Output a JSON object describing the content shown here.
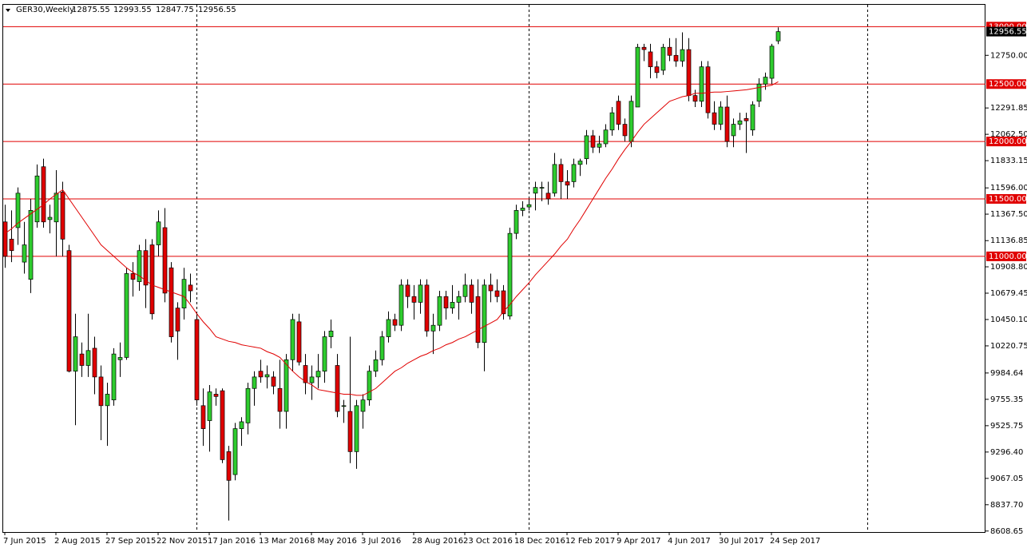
{
  "chart_data": {
    "type": "candlestick",
    "symbol": "GER30,Weekly",
    "up_color": "#2ecc2e",
    "down_color": "#e00000",
    "ma_color": "#e00000",
    "level_color": "#e00000",
    "categories": [
      "7 Jun 2015",
      null,
      null,
      null,
      null,
      null,
      null,
      null,
      "2 Aug 2015",
      null,
      null,
      null,
      null,
      null,
      null,
      null,
      "27 Sep 2015",
      null,
      null,
      null,
      null,
      null,
      null,
      null,
      "22 Nov 2015",
      null,
      null,
      null,
      null,
      null,
      null,
      null,
      "17 Jan 2016",
      null,
      null,
      null,
      null,
      null,
      null,
      null,
      "13 Mar 2016",
      null,
      null,
      null,
      null,
      null,
      null,
      null,
      "8 May 2016",
      null,
      null,
      null,
      null,
      null,
      null,
      null,
      "3 Jul 2016",
      null,
      null,
      null,
      null,
      null,
      null,
      null,
      "28 Aug 2016",
      null,
      null,
      null,
      null,
      null,
      null,
      null,
      "23 Oct 2016",
      null,
      null,
      null,
      null,
      null,
      null,
      null,
      "18 Dec 2016",
      null,
      null,
      null,
      null,
      null,
      null,
      null,
      "12 Feb 2017",
      null,
      null,
      null,
      null,
      null,
      null,
      null,
      "9 Apr 2017",
      null,
      null,
      null,
      null,
      null,
      null,
      null,
      "4 Jun 2017",
      null,
      null,
      null,
      null,
      null,
      null,
      null,
      "30 Jul 2017",
      null,
      null,
      null,
      null,
      null,
      null,
      null,
      "24 Sep 2017",
      null
    ],
    "open": [
      11300,
      11150,
      11250,
      10950,
      10800,
      11300,
      11780,
      11320,
      11300,
      11560,
      11050,
      10000,
      10150,
      10050,
      10200,
      9950,
      9700,
      9750,
      10100,
      10120,
      10850,
      10780,
      11050,
      11100,
      11100,
      11250,
      10900,
      10550,
      10550,
      10750,
      10450,
      9700,
      9570,
      9800,
      9830,
      9300,
      9100,
      9500,
      9550,
      9850,
      10000,
      9950,
      9950,
      9850,
      9650,
      10100,
      10430,
      10050,
      9900,
      9950,
      10000,
      10300,
      10050,
      9700,
      9650,
      9300,
      9650,
      9750,
      10000,
      10100,
      10300,
      10450,
      10400,
      10750,
      10650,
      10600,
      10750,
      10350,
      10400,
      10650,
      10550,
      10600,
      10650,
      10750,
      10650,
      10250,
      10750,
      10700,
      10700,
      10480,
      11200,
      11400,
      11430,
      11550,
      11600,
      11550,
      11550,
      11800,
      11650,
      11650,
      11800,
      11850,
      12050,
      11950,
      11980,
      12100,
      12350,
      12150,
      12000,
      12300,
      12820,
      12780,
      12650,
      12620,
      12820,
      12750,
      12700,
      12800,
      12400,
      12350,
      12650,
      12250,
      12150,
      12300,
      12050,
      12150,
      12200,
      12100,
      12350,
      12500,
      12550,
      12875.55
    ],
    "high": [
      11450,
      11400,
      11600,
      11300,
      11500,
      11800,
      11850,
      11450,
      11750,
      11650,
      11100,
      10500,
      10250,
      10500,
      10300,
      10050,
      9900,
      10200,
      10250,
      10900,
      10950,
      11100,
      11150,
      11150,
      11400,
      11420,
      10950,
      10600,
      10900,
      10850,
      10500,
      9850,
      9880,
      9850,
      9850,
      9350,
      9550,
      9600,
      9900,
      10000,
      10100,
      10050,
      10000,
      10100,
      10150,
      10500,
      10500,
      10150,
      10050,
      10150,
      10350,
      10450,
      10150,
      9750,
      10300,
      9750,
      9800,
      10050,
      10180,
      10350,
      10520,
      10500,
      10800,
      10800,
      10750,
      10800,
      10800,
      10500,
      10700,
      10700,
      10750,
      10700,
      10850,
      10800,
      10800,
      10800,
      10850,
      10800,
      10750,
      11250,
      11450,
      11480,
      11500,
      11650,
      11650,
      11650,
      11900,
      11850,
      11750,
      11850,
      11850,
      12100,
      12100,
      12050,
      12150,
      12300,
      12400,
      12200,
      12400,
      12850,
      12850,
      12850,
      12700,
      12850,
      12900,
      12900,
      12950,
      12900,
      12450,
      12700,
      12700,
      12350,
      12350,
      12400,
      12200,
      12250,
      12250,
      12350,
      12550,
      12600,
      12850,
      12993.55
    ],
    "low": [
      10900,
      10950,
      11100,
      10850,
      10680,
      11250,
      11250,
      11200,
      11000,
      11000,
      9990,
      9530,
      9950,
      9950,
      9800,
      9400,
      9350,
      9700,
      9950,
      10100,
      10650,
      10700,
      10550,
      10450,
      11000,
      10600,
      10250,
      10100,
      10450,
      10600,
      9700,
      9350,
      9300,
      9700,
      9200,
      8700,
      9050,
      9350,
      9450,
      9700,
      9900,
      9850,
      9800,
      9500,
      9500,
      10000,
      10050,
      9800,
      9750,
      9850,
      9900,
      10200,
      9600,
      9550,
      9200,
      9150,
      9500,
      9700,
      9950,
      10050,
      10250,
      10350,
      10350,
      10550,
      10450,
      10500,
      10300,
      10150,
      10350,
      10450,
      10500,
      10450,
      10600,
      10500,
      10200,
      10000,
      10600,
      10600,
      10450,
      10450,
      11150,
      11350,
      11400,
      11400,
      11480,
      11450,
      11520,
      11500,
      11500,
      11600,
      11700,
      11800,
      11900,
      11900,
      11950,
      12050,
      12100,
      12000,
      11950,
      12300,
      12700,
      12550,
      12550,
      12580,
      12700,
      12650,
      12650,
      12350,
      12300,
      12300,
      12200,
      12100,
      12100,
      11950,
      11950,
      12100,
      11900,
      12050,
      12300,
      12450,
      12500,
      12847.75
    ],
    "close": [
      11000,
      11050,
      11550,
      11100,
      11400,
      11700,
      11300,
      11340,
      11550,
      11150,
      10000,
      10300,
      10050,
      10180,
      9950,
      9700,
      9800,
      10150,
      10120,
      10850,
      10800,
      11050,
      10750,
      10500,
      11300,
      10680,
      10300,
      10350,
      10800,
      10700,
      9750,
      9500,
      9820,
      9780,
      9230,
      9050,
      9500,
      9560,
      9850,
      9950,
      9950,
      9970,
      9870,
      9650,
      10100,
      10450,
      10080,
      9900,
      9950,
      10000,
      10300,
      10350,
      9650,
      9700,
      9300,
      9700,
      9750,
      10000,
      10100,
      10300,
      10450,
      10400,
      10750,
      10650,
      10600,
      10750,
      10350,
      10400,
      10650,
      10550,
      10600,
      10650,
      10750,
      10600,
      10250,
      10750,
      10700,
      10650,
      10500,
      11200,
      11400,
      11420,
      11450,
      11600,
      11600,
      11500,
      11800,
      11650,
      11620,
      11800,
      11830,
      12050,
      11950,
      11980,
      12100,
      12250,
      12150,
      12050,
      12350,
      12820,
      12800,
      12650,
      12600,
      12820,
      12750,
      12700,
      12800,
      12400,
      12350,
      12650,
      12250,
      12150,
      12300,
      12000,
      12150,
      12180,
      12180,
      12320,
      12500,
      12560,
      12830,
      12956.55
    ],
    "ma": [
      11200,
      11240,
      11290,
      11330,
      11370,
      11410,
      11450,
      11500,
      11540,
      11580,
      11500,
      11420,
      11340,
      11260,
      11180,
      11100,
      11050,
      11000,
      10950,
      10900,
      10860,
      10830,
      10790,
      10750,
      10730,
      10710,
      10690,
      10670,
      10650,
      10580,
      10500,
      10430,
      10370,
      10300,
      10280,
      10260,
      10250,
      10230,
      10220,
      10210,
      10200,
      10170,
      10150,
      10120,
      10060,
      10000,
      9950,
      9910,
      9880,
      9840,
      9830,
      9820,
      9810,
      9800,
      9800,
      9790,
      9790,
      9820,
      9850,
      9900,
      9950,
      10000,
      10030,
      10070,
      10100,
      10130,
      10150,
      10180,
      10200,
      10230,
      10250,
      10280,
      10300,
      10330,
      10360,
      10390,
      10420,
      10450,
      10520,
      10580,
      10650,
      10710,
      10770,
      10840,
      10900,
      10960,
      11020,
      11090,
      11150,
      11240,
      11320,
      11410,
      11500,
      11590,
      11680,
      11760,
      11850,
      11930,
      12000,
      12080,
      12150,
      12200,
      12250,
      12300,
      12350,
      12370,
      12390,
      12400,
      12420,
      12420,
      12425,
      12430,
      12430,
      12435,
      12440,
      12445,
      12450,
      12460,
      12470,
      12480,
      12490,
      12520
    ],
    "levels": [
      {
        "value": 13000,
        "label": "13000.00"
      },
      {
        "value": 12500,
        "label": "12500.00"
      },
      {
        "value": 12000,
        "label": "12000.00"
      },
      {
        "value": 11500,
        "label": "11500.00"
      },
      {
        "value": 11000,
        "label": "11000.00"
      }
    ],
    "ylim": [
      8600,
      13190
    ],
    "yticks": [
      {
        "value": 12750,
        "label": "12750.00"
      },
      {
        "value": 12291.85,
        "label": "12291.85"
      },
      {
        "value": 12062.5,
        "label": "12062.50"
      },
      {
        "value": 11833.15,
        "label": "11833.15"
      },
      {
        "value": 11596,
        "label": "11596.00"
      },
      {
        "value": 11367.5,
        "label": "11367.50"
      },
      {
        "value": 11136.85,
        "label": "11136.85"
      },
      {
        "value": 10908.8,
        "label": "10908.80"
      },
      {
        "value": 10679.45,
        "label": "10679.45"
      },
      {
        "value": 10450.1,
        "label": "10450.10"
      },
      {
        "value": 10220.75,
        "label": "10220.75"
      },
      {
        "value": 9984.64,
        "label": "9984.64"
      },
      {
        "value": 9755.35,
        "label": "9755.35"
      },
      {
        "value": 9525.75,
        "label": "9525.75"
      },
      {
        "value": 9296.4,
        "label": "9296.40"
      },
      {
        "value": 9067.05,
        "label": "9067.05"
      },
      {
        "value": 8837.7,
        "label": "8837.70"
      },
      {
        "value": 8608.65,
        "label": "8608.65"
      }
    ]
  }
}
